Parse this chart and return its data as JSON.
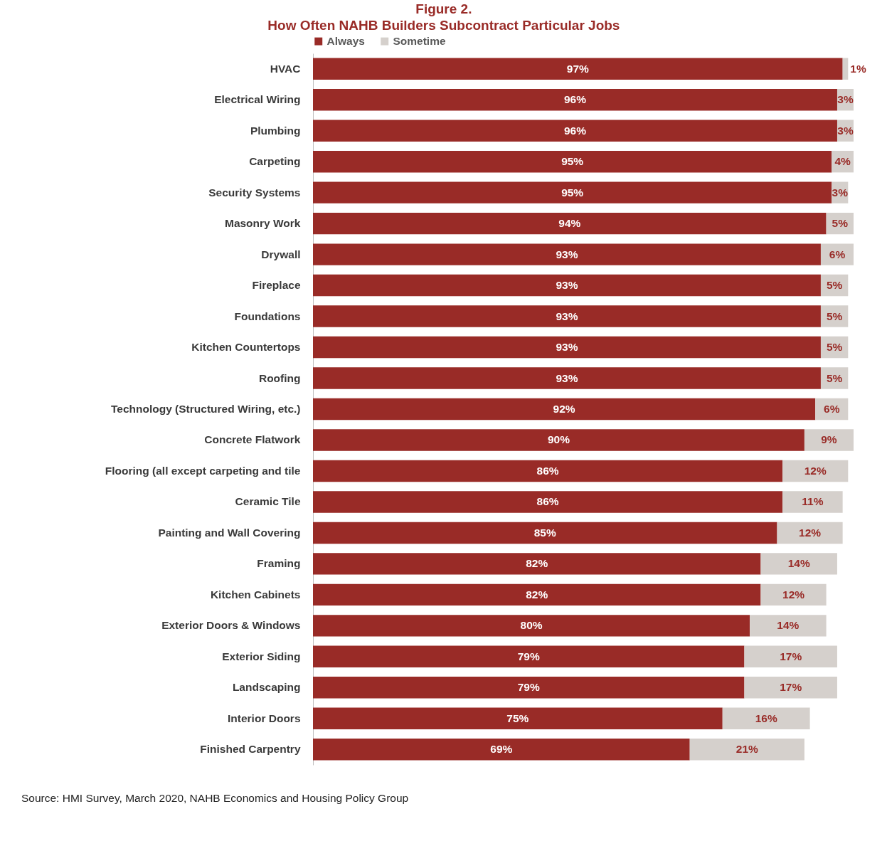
{
  "chart_data": {
    "type": "bar",
    "orientation": "horizontal",
    "stacked": true,
    "title": "Figure 2.",
    "subtitle": "How Often NAHB Builders Subcontract Particular Jobs",
    "categories": [
      "HVAC",
      "Electrical Wiring",
      "Plumbing",
      "Carpeting",
      "Security Systems",
      "Masonry Work",
      "Drywall",
      "Fireplace",
      "Foundations",
      "Kitchen Countertops",
      "Roofing",
      "Technology (Structured Wiring, etc.)",
      "Concrete Flatwork",
      "Flooring (all except carpeting and tile",
      "Ceramic Tile",
      "Painting and Wall Covering",
      "Framing",
      "Kitchen Cabinets",
      "Exterior Doors & Windows",
      "Exterior Siding",
      "Landscaping",
      "Interior Doors",
      "Finished Carpentry"
    ],
    "series": [
      {
        "name": "Always",
        "color": "#992b27",
        "values": [
          97,
          96,
          96,
          95,
          95,
          94,
          93,
          93,
          93,
          93,
          93,
          92,
          90,
          86,
          86,
          85,
          82,
          82,
          80,
          79,
          79,
          75,
          69
        ],
        "value_labels": [
          "97%",
          "96%",
          "96%",
          "95%",
          "95%",
          "94%",
          "93%",
          "93%",
          "93%",
          "93%",
          "93%",
          "92%",
          "90%",
          "86%",
          "86%",
          "85%",
          "82%",
          "82%",
          "80%",
          "79%",
          "79%",
          "75%",
          "69%"
        ]
      },
      {
        "name": "Sometime",
        "color": "#d5d0cc",
        "values": [
          1,
          3,
          3,
          4,
          3,
          5,
          6,
          5,
          5,
          5,
          5,
          6,
          9,
          12,
          11,
          12,
          14,
          12,
          14,
          17,
          17,
          16,
          21
        ],
        "value_labels": [
          "1%",
          "3%",
          "3%",
          "4%",
          "3%",
          "5%",
          "6%",
          "5%",
          "5%",
          "5%",
          "5%",
          "6%",
          "9%",
          "12%",
          "11%",
          "12%",
          "14%",
          "12%",
          "14%",
          "17%",
          "17%",
          "16%",
          "21%"
        ]
      }
    ],
    "tick_labels": "y",
    "legend": "top",
    "grid": false,
    "annotations": [
      "Source: HMI Survey, March 2020,  NAHB Economics and Housing Policy Group"
    ]
  }
}
